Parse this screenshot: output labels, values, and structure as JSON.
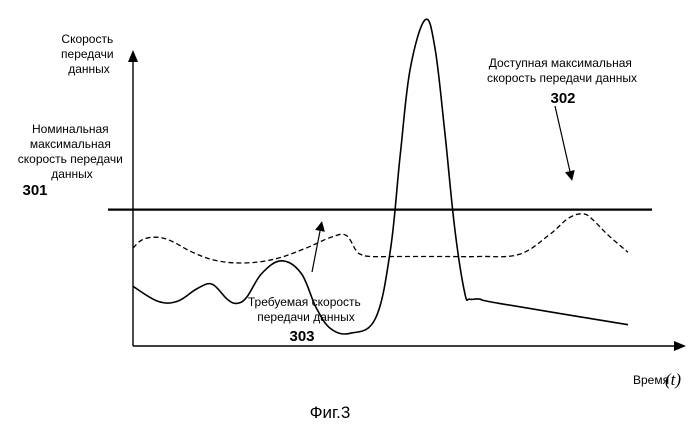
{
  "chart_data": {
    "type": "line",
    "title": "",
    "ylabel": [
      "Скорость",
      "передачи",
      "данных"
    ],
    "xlabel": "Время",
    "xlabel_symbol": "(t)",
    "caption": "Фиг.3",
    "nominal_label": [
      "Номинальная",
      "максимальная",
      "скорость передачи",
      "данных"
    ],
    "nominal_ref": "301",
    "available_label": [
      "Доступная максимальная",
      "скорость передачи данных"
    ],
    "available_ref": "302",
    "required_label": [
      "Требуемая скорость",
      "передачи данных"
    ],
    "required_ref": "303",
    "series": [
      {
        "id": "available",
        "style": "dashed",
        "x": [
          0,
          2,
          5,
          8,
          12,
          17,
          23,
          29,
          35,
          40,
          43,
          45,
          46,
          48,
          54,
          62,
          70,
          78,
          84,
          88,
          91,
          93,
          96,
          100
        ],
        "y": [
          46,
          50,
          51,
          49,
          44,
          40,
          39,
          41,
          46,
          51,
          52,
          45,
          43,
          42,
          42,
          42,
          42,
          43,
          52,
          60,
          62,
          59,
          52,
          44
        ]
      },
      {
        "id": "required",
        "style": "solid",
        "x": [
          0,
          5,
          9,
          13,
          16,
          19,
          21,
          23,
          26,
          30,
          34,
          37,
          40,
          44,
          49,
          52,
          54,
          56,
          59,
          61,
          63,
          65,
          67,
          68,
          70,
          74,
          100
        ],
        "y": [
          28,
          21,
          21,
          27,
          29,
          22,
          20,
          23,
          34,
          40,
          34,
          18,
          8,
          6,
          13,
          45,
          90,
          130,
          153,
          140,
          100,
          55,
          25,
          22,
          22,
          20,
          10
        ]
      }
    ],
    "nominal_max": 64,
    "xlim": [
      0,
      100
    ],
    "ylim": [
      0,
      160
    ],
    "colors": {
      "line": "#000000",
      "background": "#ffffff"
    }
  }
}
